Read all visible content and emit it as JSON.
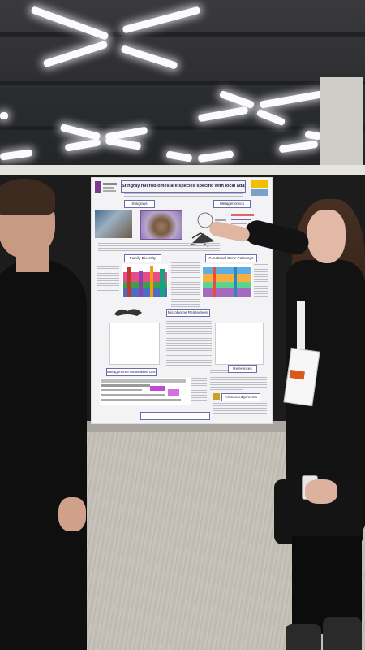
{
  "poster": {
    "title": "Stingray microbiomes are species specific with local adaptations",
    "sections": {
      "stingrays": "Stingrays",
      "metagenomics": "Metagenomics",
      "family_diversity": "Family Diversity",
      "functional_gene_pathways": "Functional Gene Pathways",
      "microbiome_relatedness": "Microbiome Relatedness",
      "metagenome_assembled_genomes": "Metagenome Assembled Genomes",
      "references": "References",
      "acknowledgements": "Acknowledgements"
    }
  },
  "colors": {
    "poster_border": "#6b6bb0",
    "badge_accent": "#d9581d"
  }
}
